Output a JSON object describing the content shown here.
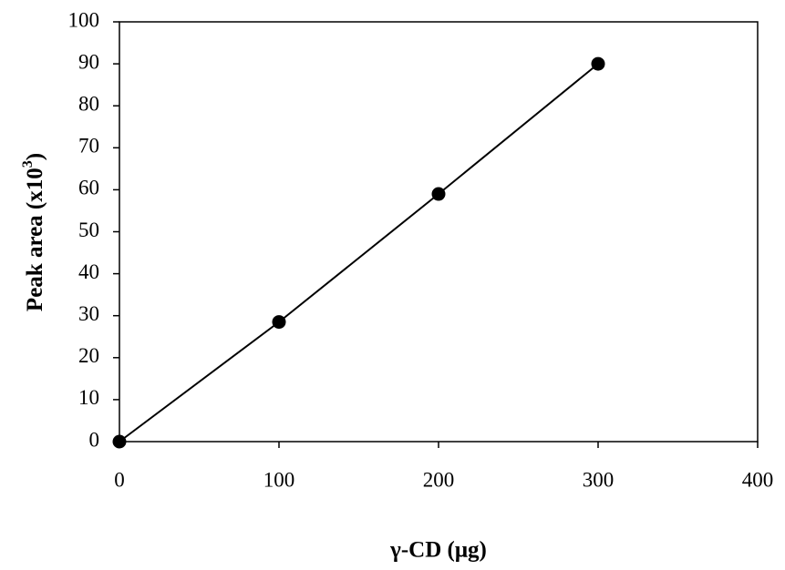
{
  "chart_data": {
    "type": "line",
    "xlabel": "γ-CD (μg)",
    "ylabel": [
      "Peak area (x10",
      "3",
      ")"
    ],
    "x": [
      0,
      100,
      200,
      300
    ],
    "series": [
      {
        "color": "#000000",
        "values": [
          0,
          28.5,
          59,
          90
        ]
      }
    ],
    "xlim": [
      0,
      400
    ],
    "xticks": [
      0,
      100,
      200,
      300,
      400
    ],
    "ylim": [
      0,
      100
    ],
    "yticks": [
      0,
      10,
      20,
      30,
      40,
      50,
      60,
      70,
      80,
      90,
      100
    ],
    "markers": true,
    "grid": false
  }
}
